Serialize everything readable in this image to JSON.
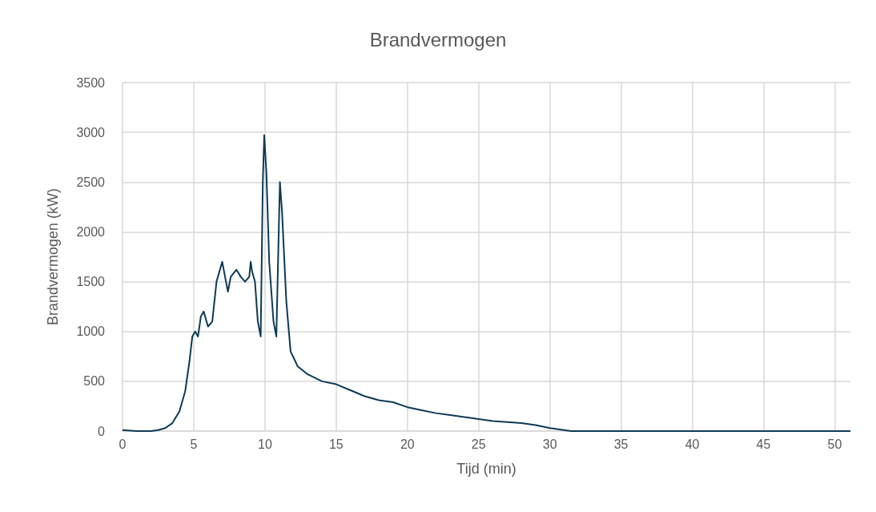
{
  "chart_data": {
    "type": "line",
    "title": "Brandvermogen",
    "xlabel": "Tijd (min)",
    "ylabel": "Brandvermogen (kW)",
    "x": [
      0,
      1,
      2,
      2.5,
      3,
      3.5,
      4,
      4.4,
      4.7,
      4.9,
      5.1,
      5.3,
      5.5,
      5.7,
      6,
      6.3,
      6.6,
      6.8,
      7,
      7.2,
      7.4,
      7.6,
      8,
      8.3,
      8.6,
      8.9,
      9,
      9.1,
      9.3,
      9.5,
      9.7,
      9.85,
      9.95,
      10.1,
      10.3,
      10.6,
      10.8,
      11,
      11.05,
      11.2,
      11.5,
      11.8,
      12.3,
      13,
      14,
      15,
      16,
      17,
      18,
      19,
      20,
      21,
      22,
      23,
      24,
      25,
      26,
      27,
      28,
      29,
      30,
      31,
      31.5,
      32,
      51.1
    ],
    "series": [
      {
        "color": "#0d3a56",
        "values": [
          10,
          0,
          0,
          10,
          30,
          80,
          200,
          400,
          700,
          950,
          1000,
          950,
          1150,
          1200,
          1050,
          1100,
          1500,
          1600,
          1700,
          1550,
          1400,
          1550,
          1620,
          1550,
          1500,
          1550,
          1700,
          1600,
          1500,
          1100,
          950,
          2500,
          2970,
          2600,
          1700,
          1100,
          950,
          2200,
          2500,
          2200,
          1300,
          800,
          650,
          570,
          500,
          470,
          410,
          350,
          310,
          290,
          240,
          210,
          180,
          160,
          140,
          120,
          100,
          90,
          80,
          60,
          30,
          10,
          0,
          0,
          0
        ]
      }
    ],
    "xlim": [
      0,
      51.1
    ],
    "xticks": [
      0,
      5,
      10,
      15,
      20,
      25,
      30,
      35,
      40,
      45,
      50
    ],
    "ylim": [
      0,
      3500
    ],
    "yticks": [
      0,
      500,
      1000,
      1500,
      2000,
      2500,
      3000,
      3500
    ],
    "grid": true,
    "marker": "none",
    "line_style": "solid"
  }
}
